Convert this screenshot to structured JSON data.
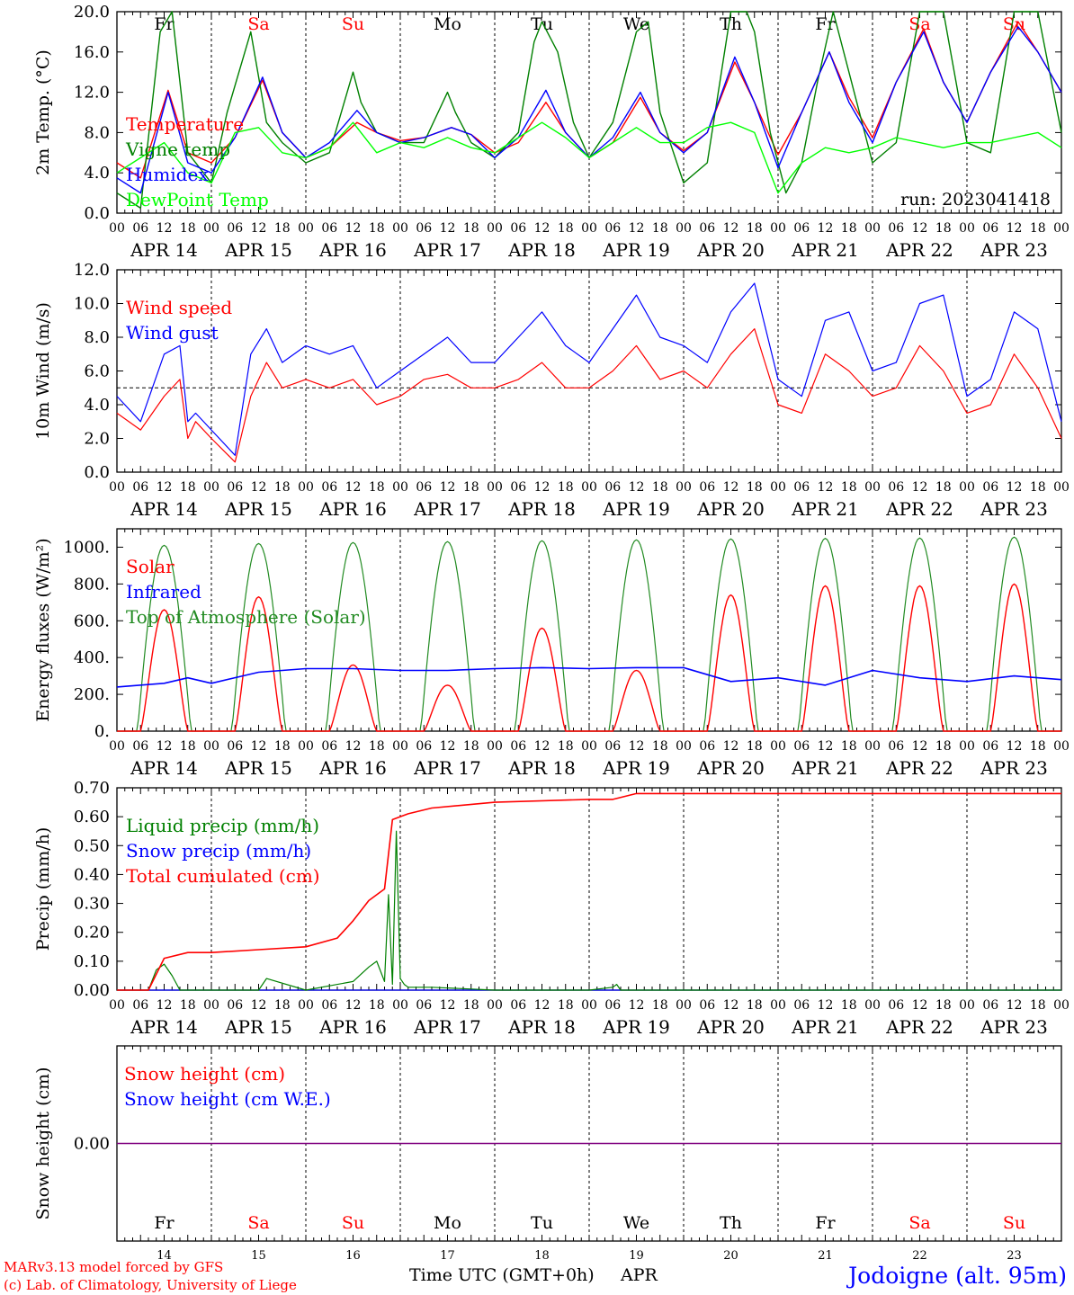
{
  "colors": {
    "red": "#ff0000",
    "green": "#008000",
    "blue": "#0000ff",
    "lightgreen": "#00ff00",
    "dark_green": "#228b22",
    "purple": "#800080",
    "black": "#000000"
  },
  "days": [
    {
      "abbr": "Fr",
      "date": "APR 14",
      "num": "14",
      "weekend": false
    },
    {
      "abbr": "Sa",
      "date": "APR 15",
      "num": "15",
      "weekend": true
    },
    {
      "abbr": "Su",
      "date": "APR 16",
      "num": "16",
      "weekend": true
    },
    {
      "abbr": "Mo",
      "date": "APR 17",
      "num": "17",
      "weekend": false
    },
    {
      "abbr": "Tu",
      "date": "APR 18",
      "num": "18",
      "weekend": false
    },
    {
      "abbr": "We",
      "date": "APR 19",
      "num": "19",
      "weekend": false
    },
    {
      "abbr": "Th",
      "date": "APR 20",
      "num": "20",
      "weekend": false
    },
    {
      "abbr": "Fr",
      "date": "APR 21",
      "num": "21",
      "weekend": false
    },
    {
      "abbr": "Sa",
      "date": "APR 22",
      "num": "22",
      "weekend": true
    },
    {
      "abbr": "Su",
      "date": "APR 23",
      "num": "23",
      "weekend": true
    }
  ],
  "hour_ticks": [
    "00",
    "06",
    "12",
    "18"
  ],
  "footer": {
    "model_line1": "MARv3.13 model forced by GFS",
    "model_line2": "(c) Lab. of Climatology, University of Liege",
    "xlabel": "Time UTC (GMT+0h)",
    "month": "APR",
    "station": "Jodoigne (alt. 95m)"
  },
  "chart_data": [
    {
      "id": "temperature",
      "type": "line",
      "ylabel": "2m Temp. (°C)",
      "ylim": [
        0,
        20
      ],
      "yticks": [
        "0.0",
        "4.0",
        "8.0",
        "12.0",
        "16.0",
        "20.0"
      ],
      "run_label": "run: 2023041418",
      "x_unit": "hours since APR 14 00 UTC",
      "series": [
        {
          "name": "Temperature",
          "color": "#ff0000",
          "x": [
            0,
            6,
            13,
            18,
            24,
            30,
            37,
            42,
            48,
            54,
            61,
            66,
            72,
            78,
            85,
            90,
            96,
            102,
            109,
            114,
            120,
            126,
            133,
            138,
            144,
            150,
            157,
            162,
            168,
            174,
            181,
            186,
            192,
            198,
            205,
            210,
            216,
            222,
            229,
            234,
            240
          ],
          "y": [
            5.0,
            3.5,
            12.2,
            6.0,
            5.0,
            7.5,
            13.2,
            8.0,
            5.5,
            6.5,
            9.0,
            8.0,
            7.2,
            7.5,
            8.5,
            7.8,
            6.0,
            7.0,
            11.0,
            8.0,
            5.5,
            7.0,
            11.5,
            8.0,
            6.2,
            8.0,
            15.0,
            11.0,
            5.8,
            10.0,
            16.0,
            11.5,
            7.5,
            13.0,
            18.3,
            13.0,
            9.0,
            14.0,
            19.0,
            16.0,
            12.0
          ]
        },
        {
          "name": "Vigne temp",
          "color": "#008000",
          "x": [
            0,
            6,
            11,
            14,
            18,
            24,
            28,
            34,
            38,
            42,
            48,
            54,
            60,
            62,
            66,
            72,
            78,
            84,
            86,
            90,
            96,
            102,
            106,
            108,
            112,
            116,
            120,
            126,
            132,
            135,
            138,
            144,
            150,
            156,
            160,
            162,
            166,
            170,
            174,
            178,
            182,
            186,
            192,
            198,
            204,
            210,
            216,
            222,
            228,
            234,
            240
          ],
          "y": [
            2.0,
            0.5,
            18.0,
            20.0,
            6.0,
            3.0,
            10.0,
            18.0,
            9.0,
            7.0,
            5.0,
            6.0,
            14.0,
            11.0,
            8.0,
            7.0,
            7.0,
            12.0,
            10.0,
            7.0,
            5.5,
            8.0,
            17.0,
            19.0,
            16.0,
            9.0,
            5.5,
            9.0,
            18.0,
            19.0,
            10.0,
            3.0,
            5.0,
            20.0,
            20.0,
            18.0,
            8.0,
            2.0,
            5.0,
            13.0,
            20.0,
            14.0,
            5.0,
            7.0,
            20.0,
            20.0,
            7.0,
            6.0,
            20.0,
            20.0,
            8.0
          ]
        },
        {
          "name": "Humidex",
          "color": "#0000ff",
          "x": [
            0,
            6,
            13,
            18,
            24,
            30,
            37,
            42,
            48,
            54,
            61,
            66,
            72,
            78,
            85,
            90,
            96,
            102,
            109,
            114,
            120,
            126,
            133,
            138,
            144,
            150,
            157,
            162,
            168,
            174,
            181,
            186,
            192,
            198,
            205,
            210,
            216,
            222,
            229,
            234,
            240
          ],
          "y": [
            3.5,
            2.0,
            12.0,
            5.0,
            4.0,
            7.5,
            13.5,
            8.0,
            5.5,
            7.0,
            10.2,
            8.0,
            7.0,
            7.5,
            8.5,
            7.8,
            5.5,
            7.5,
            12.2,
            8.0,
            5.5,
            7.5,
            12.0,
            8.0,
            6.0,
            8.0,
            15.5,
            11.0,
            4.5,
            10.0,
            16.0,
            11.0,
            7.0,
            13.0,
            18.0,
            13.0,
            9.0,
            14.0,
            18.5,
            16.0,
            12.0
          ]
        },
        {
          "name": "DewPoint Temp",
          "color": "#00ff00",
          "x": [
            0,
            6,
            12,
            18,
            24,
            30,
            36,
            42,
            48,
            54,
            60,
            66,
            72,
            78,
            84,
            90,
            96,
            102,
            108,
            114,
            120,
            126,
            132,
            138,
            144,
            150,
            156,
            162,
            168,
            174,
            180,
            186,
            192,
            198,
            204,
            210,
            216,
            222,
            228,
            234,
            240
          ],
          "y": [
            4.0,
            5.5,
            7.0,
            4.0,
            3.0,
            8.0,
            8.5,
            6.0,
            5.5,
            6.5,
            9.0,
            6.0,
            7.0,
            6.5,
            7.5,
            6.5,
            6.0,
            7.5,
            9.0,
            7.5,
            5.5,
            7.0,
            8.5,
            7.0,
            7.0,
            8.5,
            9.0,
            8.0,
            2.0,
            5.0,
            6.5,
            6.0,
            6.5,
            7.5,
            7.0,
            6.5,
            7.0,
            7.0,
            7.5,
            8.0,
            6.5
          ]
        }
      ]
    },
    {
      "id": "wind",
      "type": "line",
      "ylabel": "10m Wind (m/s)",
      "ylim": [
        0,
        12
      ],
      "yticks": [
        "0.0",
        "2.0",
        "4.0",
        "6.0",
        "8.0",
        "10.0",
        "12.0"
      ],
      "reference_line": 5,
      "series": [
        {
          "name": "Wind speed",
          "color": "#ff0000",
          "x": [
            0,
            6,
            12,
            16,
            18,
            20,
            24,
            30,
            34,
            38,
            42,
            48,
            54,
            60,
            66,
            72,
            78,
            84,
            90,
            96,
            102,
            108,
            114,
            120,
            126,
            132,
            138,
            144,
            150,
            156,
            162,
            168,
            174,
            180,
            186,
            192,
            198,
            204,
            210,
            216,
            222,
            228,
            234,
            240
          ],
          "y": [
            3.5,
            2.5,
            4.5,
            5.5,
            2.0,
            3.0,
            2.0,
            0.6,
            4.5,
            6.5,
            5.0,
            5.5,
            5.0,
            5.5,
            4.0,
            4.5,
            5.5,
            5.8,
            5.0,
            5.0,
            5.5,
            6.5,
            5.0,
            5.0,
            6.0,
            7.5,
            5.5,
            6.0,
            5.0,
            7.0,
            8.5,
            4.0,
            3.5,
            7.0,
            6.0,
            4.5,
            5.0,
            7.5,
            6.0,
            3.5,
            4.0,
            7.0,
            5.0,
            2.0
          ]
        },
        {
          "name": "Wind gust",
          "color": "#0000ff",
          "x": [
            0,
            6,
            12,
            16,
            18,
            20,
            24,
            30,
            34,
            38,
            42,
            48,
            54,
            60,
            66,
            72,
            78,
            84,
            90,
            96,
            102,
            108,
            114,
            120,
            126,
            132,
            138,
            144,
            150,
            156,
            162,
            168,
            174,
            180,
            186,
            192,
            198,
            204,
            210,
            216,
            222,
            228,
            234,
            240
          ],
          "y": [
            4.5,
            3.0,
            7.0,
            7.5,
            3.0,
            3.5,
            2.5,
            1.0,
            7.0,
            8.5,
            6.5,
            7.5,
            7.0,
            7.5,
            5.0,
            6.0,
            7.0,
            8.0,
            6.5,
            6.5,
            8.0,
            9.5,
            7.5,
            6.5,
            8.5,
            10.5,
            8.0,
            7.5,
            6.5,
            9.5,
            11.2,
            5.5,
            4.5,
            9.0,
            9.5,
            6.0,
            6.5,
            10.0,
            10.5,
            4.5,
            5.5,
            9.5,
            8.5,
            3.0
          ]
        }
      ]
    },
    {
      "id": "energy",
      "type": "line",
      "ylabel": "Energy fluxes (W/m²)",
      "ylim": [
        0,
        1100
      ],
      "yticks": [
        "0.",
        "200.",
        "400.",
        "600.",
        "800.",
        "1000."
      ],
      "series": [
        {
          "name": "Solar",
          "color": "#ff0000",
          "daily_peak": [
            660,
            730,
            360,
            250,
            560,
            330,
            740,
            790,
            790,
            800
          ]
        },
        {
          "name": "Infrared",
          "color": "#0000ff",
          "x": [
            0,
            12,
            18,
            24,
            36,
            48,
            60,
            72,
            84,
            96,
            108,
            120,
            132,
            144,
            156,
            168,
            180,
            192,
            204,
            216,
            228,
            240
          ],
          "y": [
            240,
            260,
            290,
            260,
            320,
            340,
            340,
            330,
            330,
            340,
            345,
            340,
            345,
            345,
            270,
            290,
            250,
            330,
            290,
            270,
            300,
            280
          ]
        },
        {
          "name": "Top of Atmosphere (Solar)",
          "color": "#228b22",
          "daily_peak": [
            1010,
            1020,
            1025,
            1030,
            1035,
            1040,
            1045,
            1048,
            1050,
            1055
          ]
        }
      ]
    },
    {
      "id": "precip",
      "type": "line",
      "ylabel": "Precip (mm/h)",
      "ylim": [
        0,
        0.7
      ],
      "yticks": [
        "0.00",
        "0.10",
        "0.20",
        "0.30",
        "0.40",
        "0.50",
        "0.60",
        "0.70"
      ],
      "series": [
        {
          "name": "Liquid precip (mm/h)",
          "color": "#008000",
          "x": [
            0,
            8,
            10,
            12,
            14,
            16,
            18,
            24,
            36,
            38,
            48,
            60,
            64,
            66,
            68,
            69,
            70,
            71,
            72,
            73,
            74,
            80,
            96,
            120,
            126,
            127,
            128,
            144,
            240
          ],
          "y": [
            0,
            0,
            0.07,
            0.09,
            0.05,
            0,
            0,
            0,
            0,
            0.04,
            0,
            0.03,
            0.08,
            0.1,
            0.03,
            0.33,
            0.02,
            0.55,
            0.04,
            0.02,
            0.01,
            0.01,
            0,
            0,
            0.01,
            0.02,
            0,
            0,
            0
          ]
        },
        {
          "name": "Snow precip (mm/h)",
          "color": "#0000ff",
          "x": [
            0,
            240
          ],
          "y": [
            0,
            0
          ]
        },
        {
          "name": "Total cumulated (cm)",
          "color": "#ff0000",
          "x": [
            0,
            8,
            12,
            18,
            24,
            36,
            48,
            56,
            60,
            64,
            68,
            70,
            72,
            74,
            80,
            96,
            120,
            126,
            132,
            240
          ],
          "y": [
            0,
            0,
            0.11,
            0.13,
            0.13,
            0.14,
            0.15,
            0.18,
            0.24,
            0.31,
            0.35,
            0.59,
            0.6,
            0.61,
            0.63,
            0.65,
            0.66,
            0.66,
            0.68,
            0.68
          ]
        }
      ]
    },
    {
      "id": "snow",
      "type": "line",
      "ylabel": "Snow height (cm)",
      "ylim": [
        -1,
        1
      ],
      "yticks": [
        "0.00"
      ],
      "series": [
        {
          "name": "Snow height (cm)",
          "color": "#ff0000",
          "x": [
            0,
            240
          ],
          "y": [
            0,
            0
          ]
        },
        {
          "name": "Snow height (cm W.E.)",
          "color": "#0000ff",
          "x": [
            0,
            240
          ],
          "y": [
            0,
            0
          ]
        }
      ]
    }
  ]
}
